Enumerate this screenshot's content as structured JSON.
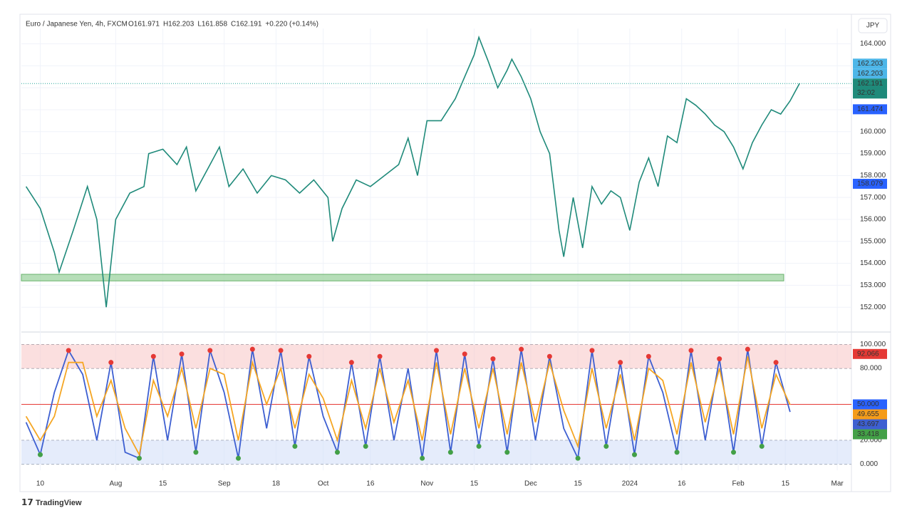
{
  "header": {
    "symbol": "Euro / Japanese Yen, 4h, FXCM",
    "ohlc": [
      "O161.971",
      "H162.203",
      "L161.858",
      "C162.191",
      "+0.220 (+0.14%)"
    ],
    "currency": "JPY",
    "brand": "TradingView"
  },
  "chart_data": [
    {
      "type": "line",
      "name": "price",
      "x": [
        -3,
        0,
        3,
        4,
        7,
        10,
        12,
        14,
        16,
        19,
        22,
        23,
        26,
        29,
        31,
        33,
        36,
        38,
        40,
        43,
        46,
        49,
        52,
        55,
        58,
        61,
        62,
        64,
        67,
        70,
        73,
        76,
        78,
        80,
        82,
        85,
        88,
        90,
        92,
        93,
        95,
        97,
        99,
        100,
        102,
        104,
        106,
        108,
        110,
        111,
        113,
        115,
        117,
        119,
        121,
        123,
        125,
        127,
        129,
        131,
        133,
        135,
        137,
        139,
        141,
        143,
        145,
        147,
        149,
        151,
        153,
        155,
        157,
        159,
        161
      ],
      "series": [
        {
          "name": "EURJPY",
          "color": "#1f8a7a",
          "values": [
            157.5,
            156.5,
            154.5,
            153.6,
            155.5,
            157.5,
            156,
            152,
            156,
            157.2,
            157.5,
            159,
            159.2,
            158.5,
            159.3,
            157.3,
            158.5,
            159.3,
            157.5,
            158.3,
            157.2,
            158,
            157.8,
            157.2,
            157.8,
            157,
            155,
            156.5,
            157.8,
            157.5,
            158,
            158.5,
            159.7,
            158,
            160.5,
            160.5,
            161.5,
            162.5,
            163.5,
            164.3,
            163.2,
            162,
            162.8,
            163.3,
            162.5,
            161.5,
            160,
            159,
            155.5,
            154.3,
            157,
            154.7,
            157.5,
            156.7,
            157.3,
            157,
            155.5,
            157.7,
            158.8,
            157.5,
            159.8,
            159.5,
            161.5,
            161.2,
            160.8,
            160.3,
            160,
            159.3,
            158.3,
            159.5,
            160.3,
            161,
            160.8,
            161.4,
            162.2
          ]
        }
      ],
      "xlim": [
        -4,
        172
      ],
      "ylim": [
        151,
        164.7
      ],
      "xticks": [
        {
          "value": 0,
          "label": "10"
        },
        {
          "value": 16,
          "label": "Aug"
        },
        {
          "value": 26,
          "label": "15"
        },
        {
          "value": 39,
          "label": "Sep"
        },
        {
          "value": 50,
          "label": "18"
        },
        {
          "value": 60,
          "label": "Oct"
        },
        {
          "value": 70,
          "label": "16"
        },
        {
          "value": 82,
          "label": "Nov"
        },
        {
          "value": 92,
          "label": "15"
        },
        {
          "value": 104,
          "label": "Dec"
        },
        {
          "value": 114,
          "label": "15"
        },
        {
          "value": 125,
          "label": "2024"
        },
        {
          "value": 136,
          "label": "16"
        },
        {
          "value": 148,
          "label": "Feb"
        },
        {
          "value": 158,
          "label": "15"
        },
        {
          "value": 169,
          "label": "Mar"
        }
      ],
      "yticks": [
        {
          "value": 152,
          "label": "152.000"
        },
        {
          "value": 153,
          "label": "153.000"
        },
        {
          "value": 154,
          "label": "154.000"
        },
        {
          "value": 155,
          "label": "155.000"
        },
        {
          "value": 156,
          "label": "156.000"
        },
        {
          "value": 157,
          "label": "157.000"
        },
        {
          "value": 158,
          "label": "158.000"
        },
        {
          "value": 159,
          "label": "159.000"
        },
        {
          "value": 160,
          "label": "160.000"
        },
        {
          "value": 161,
          "label": "161.000"
        },
        {
          "value": 162,
          "label": "162.000"
        },
        {
          "value": 163,
          "label": "163.000"
        },
        {
          "value": 164,
          "label": "164.000"
        }
      ],
      "support_zone": [
        153.2,
        153.5
      ],
      "last_price": 162.191,
      "countdown": "32:02",
      "price_labels": [
        {
          "value": 162.203,
          "color": "#4db6e8"
        },
        {
          "value": 162.203,
          "color": "#4db6e8"
        },
        {
          "value": 161.474,
          "color": "#2962ff"
        },
        {
          "value": 158.079,
          "color": "#2962ff"
        }
      ],
      "grid": true
    },
    {
      "type": "line",
      "name": "stochastic",
      "x": [
        -3,
        0,
        3,
        6,
        9,
        12,
        15,
        18,
        21,
        24,
        27,
        30,
        33,
        36,
        39,
        42,
        45,
        48,
        51,
        54,
        57,
        60,
        63,
        66,
        69,
        72,
        75,
        78,
        81,
        84,
        87,
        90,
        93,
        96,
        99,
        102,
        105,
        108,
        111,
        114,
        117,
        120,
        123,
        126,
        129,
        132,
        135,
        138,
        141,
        144,
        147,
        150,
        153,
        156,
        159
      ],
      "series": [
        {
          "name": "%K",
          "color": "#3d5fd1",
          "values": [
            35,
            8,
            60,
            95,
            75,
            20,
            85,
            10,
            5,
            90,
            20,
            92,
            10,
            95,
            60,
            5,
            96,
            30,
            95,
            15,
            90,
            40,
            10,
            85,
            15,
            90,
            20,
            80,
            5,
            95,
            10,
            92,
            15,
            88,
            10,
            96,
            20,
            90,
            30,
            5,
            95,
            15,
            85,
            8,
            90,
            60,
            10,
            95,
            20,
            88,
            10,
            96,
            15,
            85,
            43.697
          ]
        },
        {
          "name": "%D",
          "color": "#f5a623",
          "values": [
            40,
            20,
            40,
            85,
            85,
            40,
            70,
            30,
            8,
            70,
            40,
            80,
            30,
            80,
            75,
            20,
            85,
            50,
            80,
            30,
            75,
            55,
            20,
            70,
            30,
            80,
            35,
            70,
            20,
            85,
            25,
            80,
            30,
            80,
            25,
            85,
            35,
            85,
            45,
            15,
            80,
            30,
            75,
            20,
            80,
            70,
            25,
            85,
            35,
            80,
            25,
            90,
            30,
            75,
            49.655
          ]
        }
      ],
      "xlim": [
        -4,
        172
      ],
      "ylim": [
        -5,
        108
      ],
      "yticks": [
        {
          "value": 0,
          "label": "0.000"
        },
        {
          "value": 20,
          "label": "20.000"
        },
        {
          "value": 80,
          "label": "80.000"
        },
        {
          "value": 100,
          "label": "100.000"
        }
      ],
      "midline": {
        "value": 50,
        "label": "50.000"
      },
      "value_labels": [
        {
          "value": 92.066,
          "color": "#e53935"
        },
        {
          "value": 49.655,
          "color": "#f59c1a"
        },
        {
          "value": 43.697,
          "color": "#3d5fd1"
        },
        {
          "value": 33.418,
          "color": "#43a047"
        }
      ]
    }
  ]
}
